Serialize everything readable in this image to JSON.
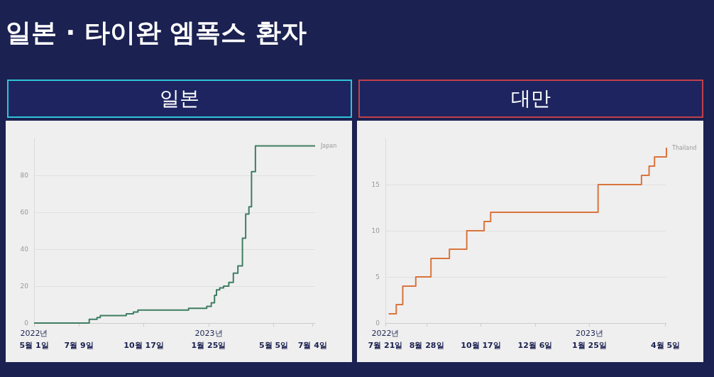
{
  "chart_data": [
    {
      "type": "step",
      "title": "일본 · 타이완 엠폭스 환자",
      "subtitle": "일본",
      "xlim": [
        "2022-05-01",
        "2023-07-08"
      ],
      "xticks": [
        {
          "value": "2022-05-01",
          "label": "2022년\n5월 1일"
        },
        {
          "value": "2022-07-09",
          "label": "7월 9일"
        },
        {
          "value": "2022-10-17",
          "label": "10월 17일"
        },
        {
          "value": "2023-01-25",
          "label": "2023년\n1월 25일"
        },
        {
          "value": "2023-05-05",
          "label": "5월 5일"
        },
        {
          "value": "2023-07-04",
          "label": "7월 4일"
        }
      ],
      "ylim": [
        0,
        100
      ],
      "yticks": [
        0,
        20,
        40,
        60,
        80
      ],
      "grid": "y",
      "legend": false,
      "series": [
        {
          "name": "Japan",
          "color": "#3f7d62",
          "x": [
            "2022-05-01",
            "2022-07-25",
            "2022-08-06",
            "2022-08-11",
            "2022-09-20",
            "2022-10-01",
            "2022-10-08",
            "2022-12-25",
            "2023-01-22",
            "2023-01-29",
            "2023-02-03",
            "2023-02-06",
            "2023-02-11",
            "2023-02-17",
            "2023-02-25",
            "2023-03-04",
            "2023-03-11",
            "2023-03-18",
            "2023-03-23",
            "2023-03-28",
            "2023-04-01",
            "2023-04-07",
            "2023-07-08"
          ],
          "values": [
            0,
            2,
            3,
            4,
            5,
            6,
            7,
            8,
            9,
            11,
            15,
            18,
            19,
            20,
            22,
            27,
            31,
            46,
            59,
            63,
            82,
            96,
            96
          ]
        }
      ]
    },
    {
      "type": "step",
      "subtitle": "대만",
      "xlim": [
        "2022-07-21",
        "2023-04-06"
      ],
      "xticks": [
        {
          "value": "2022-07-21",
          "label": "2022년\n7월 21일"
        },
        {
          "value": "2022-08-28",
          "label": "8월 28일"
        },
        {
          "value": "2022-10-17",
          "label": "10월 17일"
        },
        {
          "value": "2022-12-06",
          "label": "12월 6일"
        },
        {
          "value": "2023-01-25",
          "label": "2023년\n1월 25일"
        },
        {
          "value": "2023-04-05",
          "label": "4월 5일"
        }
      ],
      "ylim": [
        0,
        20
      ],
      "yticks": [
        0,
        5,
        10,
        15
      ],
      "grid": "y",
      "legend": false,
      "series": [
        {
          "name": "Thailand",
          "color": "#d9743c",
          "x": [
            "2022-07-24",
            "2022-07-31",
            "2022-08-06",
            "2022-08-18",
            "2022-09-01",
            "2022-09-18",
            "2022-10-04",
            "2022-10-20",
            "2022-10-26",
            "2023-02-02",
            "2023-03-14",
            "2023-03-21",
            "2023-03-26",
            "2023-04-06"
          ],
          "values": [
            1,
            2,
            4,
            5,
            7,
            8,
            10,
            11,
            12,
            15,
            16,
            17,
            18,
            19
          ]
        }
      ]
    }
  ]
}
